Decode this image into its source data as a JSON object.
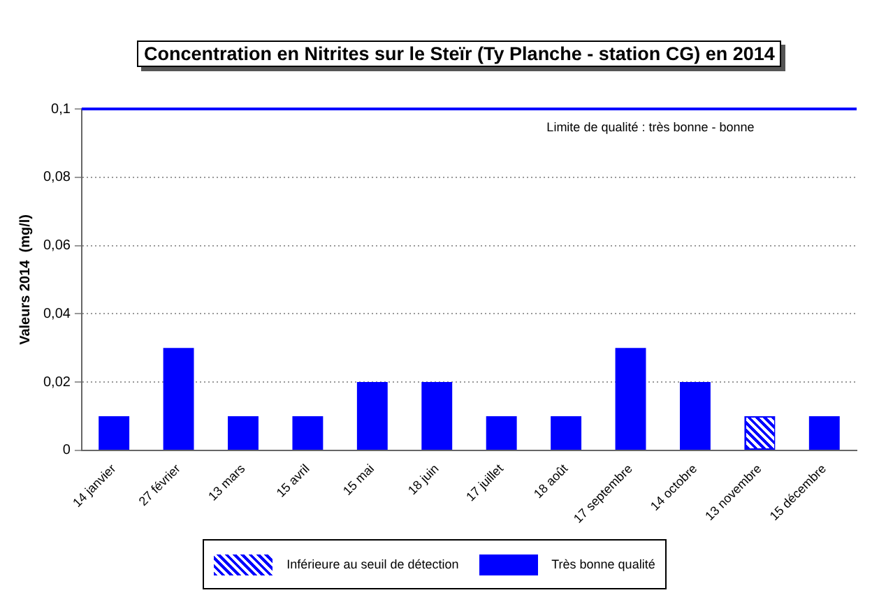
{
  "chart_data": {
    "type": "bar",
    "title": "Concentration en Nitrites sur le Steïr (Ty Planche - station CG) en 2014",
    "ylabel": "Valeurs 2014  (mg/l)",
    "categories": [
      "14 janvier",
      "27 février",
      "13 mars",
      "15 avril",
      "15 mai",
      "18 juin",
      "17 juillet",
      "18 août",
      "17 septembre",
      "14 octobre",
      "13 novembre",
      "15 décembre"
    ],
    "series": [
      {
        "name": "Inférieure au seuil de détection",
        "color": "#0000ff",
        "values": [
          null,
          null,
          null,
          null,
          null,
          null,
          null,
          null,
          null,
          null,
          0.01,
          null
        ]
      },
      {
        "name": "Très bonne qualité",
        "color": "#0000ff",
        "values": [
          0.01,
          0.03,
          0.01,
          0.01,
          0.02,
          0.02,
          0.01,
          0.01,
          0.03,
          0.02,
          null,
          0.01
        ]
      }
    ],
    "ylim": [
      0,
      0.1
    ],
    "yticks": [
      {
        "value": 0,
        "label": "0"
      },
      {
        "value": 0.02,
        "label": "0,02"
      },
      {
        "value": 0.04,
        "label": "0,04"
      },
      {
        "value": 0.06,
        "label": "0,06"
      },
      {
        "value": 0.08,
        "label": "0,08"
      },
      {
        "value": 0.1,
        "label": "0,1"
      }
    ],
    "ref_lines": [
      {
        "axis": "y",
        "value": 0.1,
        "label": "Limite de qualité : très bonne - bonne",
        "color": "#0000ff"
      }
    ],
    "grid": "y",
    "legend": "bottom"
  }
}
